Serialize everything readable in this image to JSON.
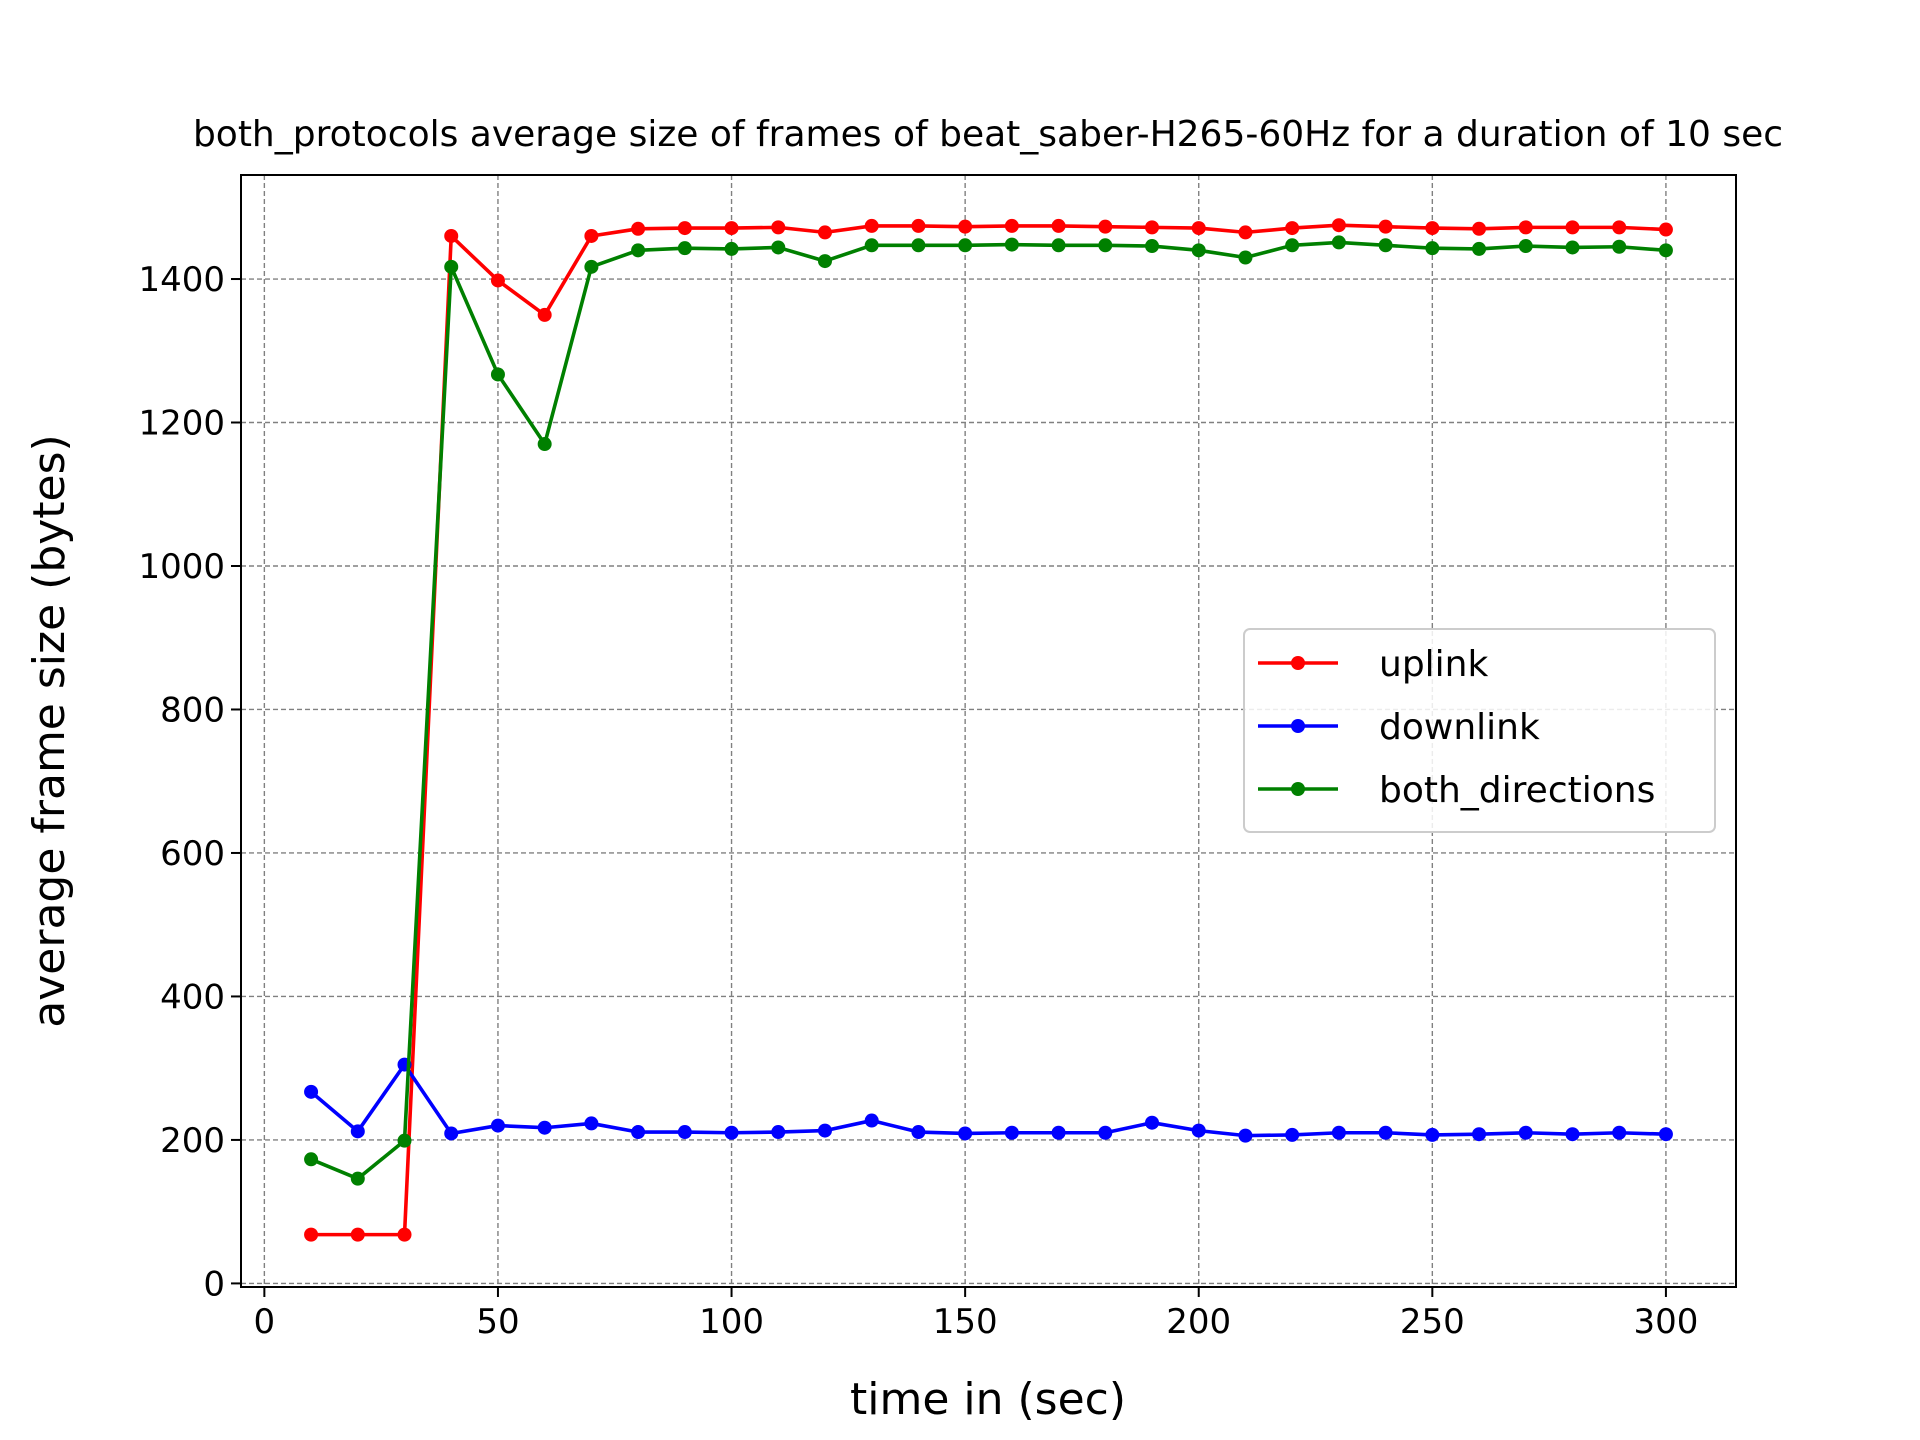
{
  "chart_data": {
    "type": "line",
    "title": "both_protocols average size of frames of beat_saber-H265-60Hz for a duration of 10 sec",
    "xlabel": "time in (sec)",
    "ylabel": "average frame size (bytes)",
    "xlim": [
      -5,
      315
    ],
    "ylim": [
      -5,
      1545
    ],
    "xticks": [
      0,
      50,
      100,
      150,
      200,
      250,
      300
    ],
    "yticks": [
      0,
      200,
      400,
      600,
      800,
      1000,
      1200,
      1400
    ],
    "grid": true,
    "legend_position": "center-right",
    "x": [
      10,
      20,
      30,
      40,
      50,
      60,
      70,
      80,
      90,
      100,
      110,
      120,
      130,
      140,
      150,
      160,
      170,
      180,
      190,
      200,
      210,
      220,
      230,
      240,
      250,
      260,
      270,
      280,
      290,
      300
    ],
    "series": [
      {
        "name": "uplink",
        "color": "#ff0000",
        "values": [
          68,
          68,
          68,
          1460,
          1398,
          1350,
          1460,
          1470,
          1471,
          1471,
          1472,
          1465,
          1474,
          1474,
          1473,
          1474,
          1474,
          1473,
          1472,
          1471,
          1465,
          1471,
          1475,
          1473,
          1471,
          1470,
          1472,
          1472,
          1472,
          1469
        ]
      },
      {
        "name": "downlink",
        "color": "#0000ff",
        "values": [
          267,
          212,
          305,
          209,
          220,
          217,
          223,
          211,
          211,
          210,
          211,
          213,
          227,
          211,
          209,
          210,
          210,
          210,
          224,
          213,
          206,
          207,
          210,
          210,
          207,
          208,
          210,
          208,
          210,
          208
        ]
      },
      {
        "name": "both_directions",
        "color": "#008000",
        "values": [
          173,
          146,
          199,
          1417,
          1267,
          1170,
          1417,
          1440,
          1443,
          1442,
          1444,
          1425,
          1447,
          1447,
          1447,
          1448,
          1447,
          1447,
          1446,
          1440,
          1430,
          1447,
          1451,
          1447,
          1443,
          1442,
          1446,
          1444,
          1445,
          1440
        ]
      }
    ]
  }
}
